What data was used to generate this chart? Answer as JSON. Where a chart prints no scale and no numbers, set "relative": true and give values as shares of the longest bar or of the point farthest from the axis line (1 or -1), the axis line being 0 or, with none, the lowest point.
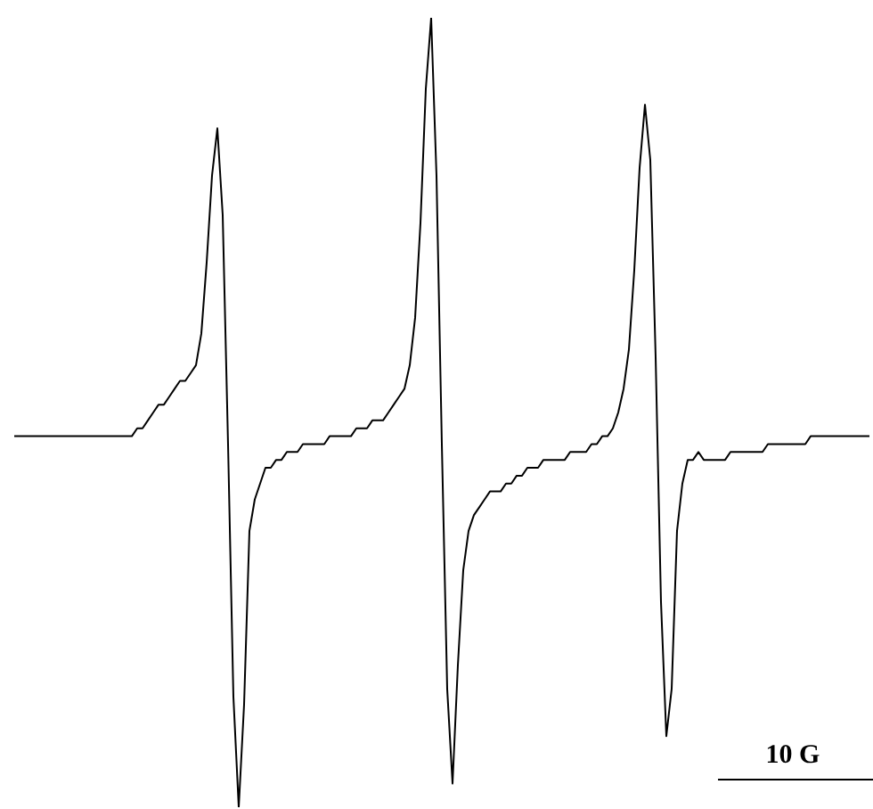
{
  "chart_data": {
    "type": "line",
    "relative": true,
    "line_style": "solid",
    "annotations": [
      "10 G"
    ],
    "categories": [
      null,
      null,
      null,
      null,
      null,
      null,
      null,
      null,
      null,
      null,
      null,
      null,
      null,
      null,
      null,
      null,
      null,
      null,
      null,
      null,
      null,
      null,
      null,
      null,
      null,
      null,
      null,
      null,
      null,
      null,
      null,
      null,
      null,
      null,
      null,
      null,
      null,
      null,
      null,
      null,
      null,
      null,
      null,
      null,
      null,
      null,
      null,
      null,
      null,
      null,
      null,
      null,
      null,
      null,
      null,
      null,
      null,
      null,
      null,
      null,
      null,
      null,
      null,
      null,
      null,
      null,
      null,
      null,
      null,
      null,
      null,
      null,
      null,
      null,
      null,
      null,
      null,
      null,
      null,
      null,
      null,
      null,
      null,
      null,
      null,
      null,
      null,
      null,
      null,
      null,
      null,
      null,
      null,
      null,
      null,
      null,
      null,
      null,
      null,
      null,
      null,
      null,
      null,
      null,
      null,
      null,
      null,
      null,
      null,
      null,
      null,
      null,
      null,
      null,
      null,
      null,
      null,
      null,
      null,
      null,
      null,
      null,
      null,
      null,
      null,
      null,
      null,
      null,
      null,
      null,
      null,
      null,
      null,
      null,
      null,
      null,
      null,
      null,
      null,
      null,
      null,
      null,
      null,
      null,
      null,
      null,
      null,
      null,
      null,
      null,
      null,
      null,
      null,
      null,
      null,
      null,
      null,
      null,
      null,
      null,
      null
    ],
    "series": [
      {
        "color": "#000000",
        "values": [
          0.47,
          0.47,
          0.47,
          0.47,
          0.47,
          0.47,
          0.47,
          0.47,
          0.47,
          0.47,
          0.47,
          0.47,
          0.47,
          0.47,
          0.47,
          0.47,
          0.47,
          0.47,
          0.47,
          0.47,
          0.47,
          0.47,
          0.47,
          0.48,
          0.48,
          0.49,
          0.5,
          0.51,
          0.51,
          0.52,
          0.53,
          0.54,
          0.54,
          0.55,
          0.56,
          0.6,
          0.69,
          0.8,
          0.86,
          0.75,
          0.46,
          0.14,
          0,
          0.13,
          0.35,
          0.39,
          0.41,
          0.43,
          0.43,
          0.44,
          0.44,
          0.45,
          0.45,
          0.45,
          0.46,
          0.46,
          0.46,
          0.46,
          0.46,
          0.47,
          0.47,
          0.47,
          0.47,
          0.47,
          0.48,
          0.48,
          0.48,
          0.49,
          0.49,
          0.49,
          0.5,
          0.51,
          0.52,
          0.53,
          0.56,
          0.62,
          0.74,
          0.91,
          1,
          0.8,
          0.46,
          0.15,
          0.03,
          0.18,
          0.3,
          0.35,
          0.37,
          0.38,
          0.39,
          0.4,
          0.4,
          0.4,
          0.41,
          0.41,
          0.42,
          0.42,
          0.43,
          0.43,
          0.43,
          0.44,
          0.44,
          0.44,
          0.44,
          0.44,
          0.45,
          0.45,
          0.45,
          0.45,
          0.46,
          0.46,
          0.47,
          0.47,
          0.48,
          0.5,
          0.53,
          0.58,
          0.68,
          0.81,
          0.89,
          0.82,
          0.57,
          0.26,
          0.09,
          0.15,
          0.35,
          0.41,
          0.44,
          0.44,
          0.45,
          0.44,
          0.44,
          0.44,
          0.44,
          0.44,
          0.45,
          0.45,
          0.45,
          0.45,
          0.45,
          0.45,
          0.45,
          0.46,
          0.46,
          0.46,
          0.46,
          0.46,
          0.46,
          0.46,
          0.46,
          0.47,
          0.47,
          0.47,
          0.47,
          0.47,
          0.47,
          0.47,
          0.47,
          0.47,
          0.47,
          0.47,
          0.47
        ]
      }
    ]
  }
}
